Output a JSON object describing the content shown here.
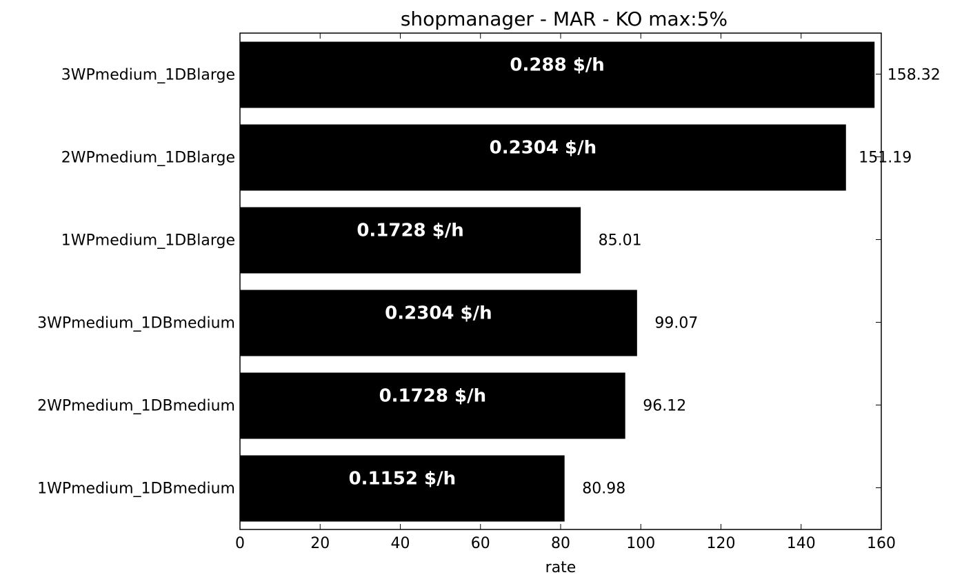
{
  "chart_data": {
    "type": "bar",
    "orientation": "horizontal",
    "title": "shopmanager  - MAR - KO max:5%",
    "xlabel": "rate",
    "ylabel": "",
    "xlim": [
      0,
      160
    ],
    "xticks": [
      "0",
      "20",
      "40",
      "60",
      "80",
      "100",
      "120",
      "140",
      "160"
    ],
    "bar_color": "#000000",
    "grid": false,
    "legend": "none",
    "categories": [
      "3WPmedium_1DBlarge",
      "2WPmedium_1DBlarge",
      "1WPmedium_1DBlarge",
      "3WPmedium_1DBmedium",
      "2WPmedium_1DBmedium",
      "1WPmedium_1DBmedium"
    ],
    "values": [
      158.32,
      151.19,
      85.01,
      99.07,
      96.12,
      80.98
    ],
    "value_labels": [
      "158.32",
      "151.19",
      "85.01",
      "99.07",
      "96.12",
      "80.98"
    ],
    "cost_labels": [
      "0.288 $/h",
      "0.2304 $/h",
      "0.1728 $/h",
      "0.2304 $/h",
      "0.1728 $/h",
      "0.1152 $/h"
    ]
  }
}
